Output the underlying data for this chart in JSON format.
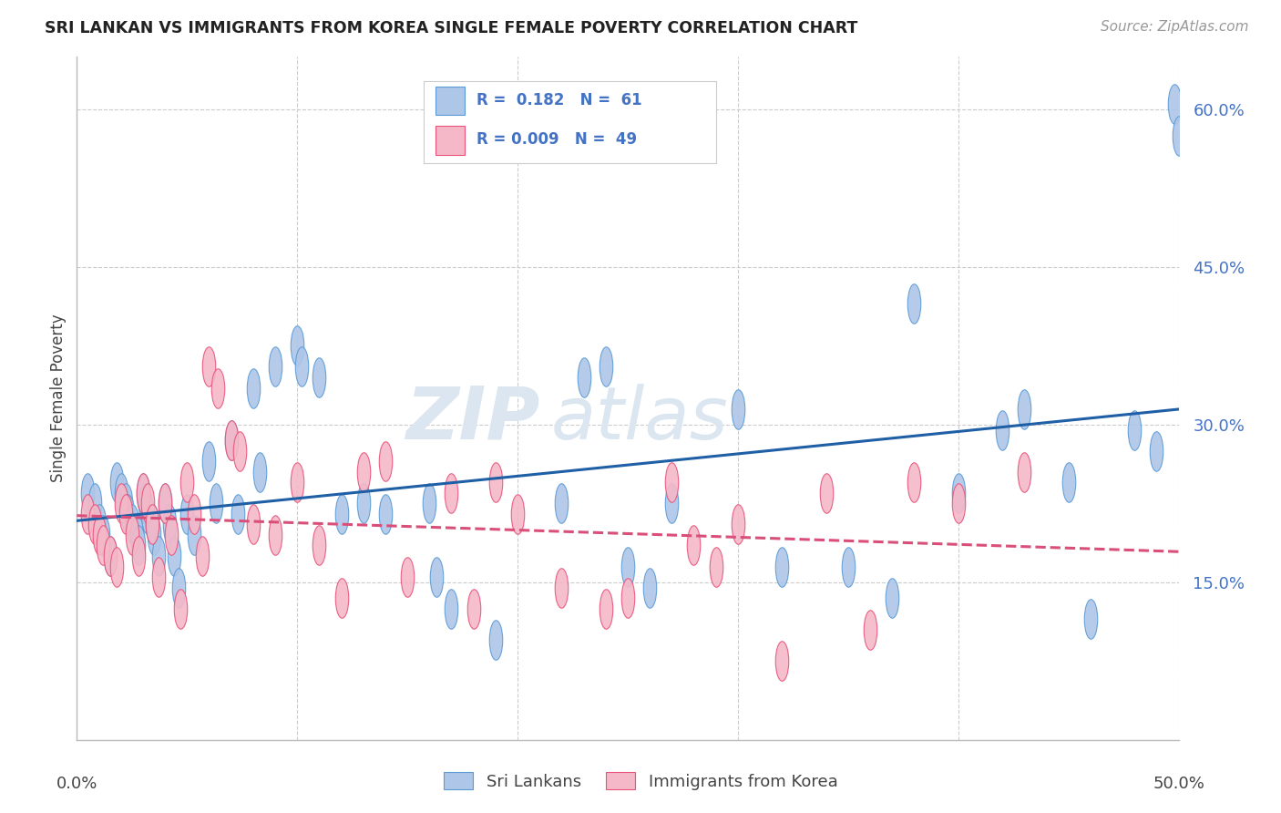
{
  "title": "SRI LANKAN VS IMMIGRANTS FROM KOREA SINGLE FEMALE POVERTY CORRELATION CHART",
  "source": "Source: ZipAtlas.com",
  "ylabel": "Single Female Poverty",
  "xlim": [
    0.0,
    0.5
  ],
  "ylim": [
    0.0,
    0.65
  ],
  "yticks": [
    0.15,
    0.3,
    0.45,
    0.6
  ],
  "ytick_labels": [
    "15.0%",
    "30.0%",
    "45.0%",
    "60.0%"
  ],
  "xticks": [
    0.0,
    0.1,
    0.2,
    0.3,
    0.4,
    0.5
  ],
  "sri_lanka_color": "#aec6e8",
  "sri_lanka_edge": "#5b9bd5",
  "korea_color": "#f4b8c8",
  "korea_edge": "#e8537a",
  "trendline_blue": "#1f5fa6",
  "trendline_pink": "#d94f7a",
  "watermark_color": "#dce6f0",
  "background_color": "#ffffff",
  "sri_lanka_x": [
    0.005,
    0.008,
    0.01,
    0.012,
    0.015,
    0.018,
    0.02,
    0.022,
    0.023,
    0.025,
    0.027,
    0.028,
    0.03,
    0.031,
    0.032,
    0.034,
    0.035,
    0.037,
    0.04,
    0.042,
    0.044,
    0.046,
    0.05,
    0.053,
    0.06,
    0.063,
    0.07,
    0.073,
    0.08,
    0.083,
    0.09,
    0.1,
    0.102,
    0.11,
    0.12,
    0.13,
    0.14,
    0.16,
    0.163,
    0.17,
    0.19,
    0.22,
    0.23,
    0.24,
    0.25,
    0.26,
    0.27,
    0.3,
    0.32,
    0.35,
    0.37,
    0.38,
    0.4,
    0.42,
    0.43,
    0.45,
    0.46,
    0.48,
    0.49,
    0.498,
    0.5
  ],
  "sri_lanka_y": [
    0.235,
    0.225,
    0.205,
    0.195,
    0.175,
    0.245,
    0.235,
    0.225,
    0.215,
    0.205,
    0.195,
    0.185,
    0.235,
    0.225,
    0.215,
    0.205,
    0.195,
    0.175,
    0.225,
    0.205,
    0.175,
    0.145,
    0.215,
    0.195,
    0.265,
    0.225,
    0.285,
    0.215,
    0.335,
    0.255,
    0.355,
    0.375,
    0.355,
    0.345,
    0.215,
    0.225,
    0.215,
    0.225,
    0.155,
    0.125,
    0.095,
    0.225,
    0.345,
    0.355,
    0.165,
    0.145,
    0.225,
    0.315,
    0.165,
    0.165,
    0.135,
    0.415,
    0.235,
    0.295,
    0.315,
    0.245,
    0.115,
    0.295,
    0.275,
    0.605,
    0.575
  ],
  "korea_x": [
    0.005,
    0.008,
    0.01,
    0.012,
    0.015,
    0.018,
    0.02,
    0.022,
    0.025,
    0.028,
    0.03,
    0.032,
    0.034,
    0.037,
    0.04,
    0.043,
    0.047,
    0.05,
    0.053,
    0.057,
    0.06,
    0.064,
    0.07,
    0.074,
    0.08,
    0.09,
    0.1,
    0.11,
    0.12,
    0.13,
    0.14,
    0.15,
    0.17,
    0.18,
    0.19,
    0.2,
    0.22,
    0.24,
    0.25,
    0.27,
    0.28,
    0.29,
    0.3,
    0.32,
    0.34,
    0.36,
    0.38,
    0.4,
    0.43
  ],
  "korea_y": [
    0.215,
    0.205,
    0.195,
    0.185,
    0.175,
    0.165,
    0.225,
    0.215,
    0.195,
    0.175,
    0.235,
    0.225,
    0.205,
    0.155,
    0.225,
    0.195,
    0.125,
    0.245,
    0.215,
    0.175,
    0.355,
    0.335,
    0.285,
    0.275,
    0.205,
    0.195,
    0.245,
    0.185,
    0.135,
    0.255,
    0.265,
    0.155,
    0.235,
    0.125,
    0.245,
    0.215,
    0.145,
    0.125,
    0.135,
    0.245,
    0.185,
    0.165,
    0.205,
    0.075,
    0.235,
    0.105,
    0.245,
    0.225,
    0.255
  ],
  "legend_text_1": "R =  0.182   N =  61",
  "legend_text_2": "R = 0.009   N =  49",
  "bottom_legend_1": "Sri Lankans",
  "bottom_legend_2": "Immigrants from Korea"
}
